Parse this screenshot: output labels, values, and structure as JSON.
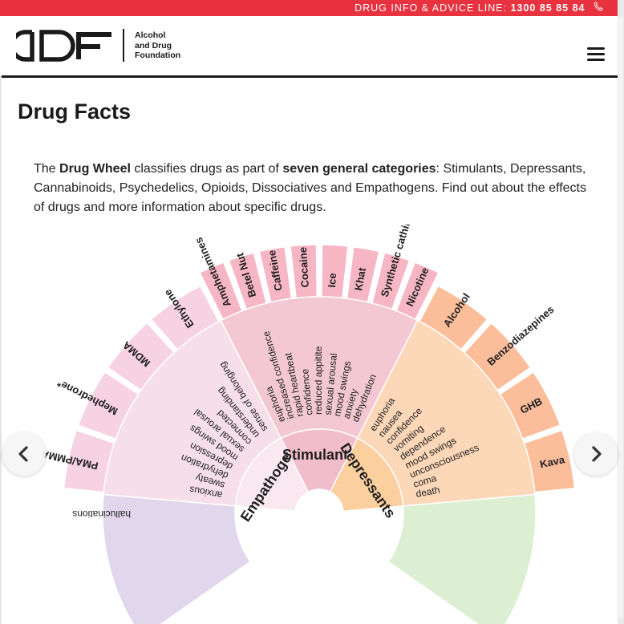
{
  "topbar": {
    "label": "DRUG INFO & ADVICE LINE:",
    "phone": "1300 85 85 84"
  },
  "logo": {
    "mark": "adf",
    "line1": "Alcohol",
    "line2": "and Drug",
    "line3": "Foundation"
  },
  "page": {
    "title": "Drug Facts",
    "intro": [
      {
        "text": "The "
      },
      {
        "text": "Drug Wheel",
        "bold": true
      },
      {
        "text": " classifies drugs as part of "
      },
      {
        "text": "seven general categories",
        "bold": true
      },
      {
        "text": ": Stimulants, Depressants, Cannabinoids, Psychedelics, Opioids, Dissociatives and Empathogens. Find out about the effects of drugs and more information about specific drugs."
      }
    ]
  },
  "colors": {
    "topbar": "#e8323f",
    "stimulants_outer": "#f6b6c4",
    "stimulants_mid": "#f3c8d2",
    "stimulants_inner": "#f1bccb",
    "depressants_outer": "#fbbd9a",
    "depressants_mid": "#fcd7b8",
    "depressants_inner": "#fccf9e",
    "empathogens_outer": "#f6d2e2",
    "empathogens_mid": "#f6dfe9",
    "empathogens_inner": "#f9e8f0",
    "psychedelics": "#e0d7ec",
    "cannabinoids": "#dcefd3"
  },
  "wheel": {
    "categories": [
      {
        "id": "stimulants",
        "name": "Stimulants",
        "drugs": [
          "Amphetamines",
          "Betel Nut",
          "Caffeine",
          "Cocaine",
          "Ice",
          "Khat",
          "Synthetic cathinones",
          "Nicotine"
        ],
        "effects": [
          "euphoria",
          "increased confidence",
          "rapid heartbeat",
          "confidence",
          "reduced appitite",
          "sexual arousal",
          "mood swings",
          "anxiety",
          "dehydration"
        ]
      },
      {
        "id": "depressants",
        "name": "Depressants",
        "drugs": [
          "Alcohol",
          "Benzodiazepines",
          "GHB",
          "Kava"
        ],
        "effects": [
          "euphoria",
          "nausea",
          "confidence",
          "vomiting",
          "dependence",
          "mood swings",
          "unconsciousness",
          "coma",
          "death"
        ]
      },
      {
        "id": "empathogens",
        "name": "Empathogens",
        "drugs": [
          "PMA/PMMA",
          "Mephedrone*",
          "MDMA",
          "Ethylone"
        ],
        "effects": [
          "anxious",
          "sweaty",
          "dehydration",
          "depression",
          "mood swings",
          "sexual arousal",
          "connected",
          "understanding",
          "sense of belonging"
        ]
      }
    ],
    "psychedelics_effects": [
      "hallucinations"
    ]
  },
  "nav": {
    "prev_icon": "chevron-left-icon",
    "next_icon": "chevron-right-icon"
  },
  "header": {
    "menu_icon": "hamburger-menu-icon"
  }
}
